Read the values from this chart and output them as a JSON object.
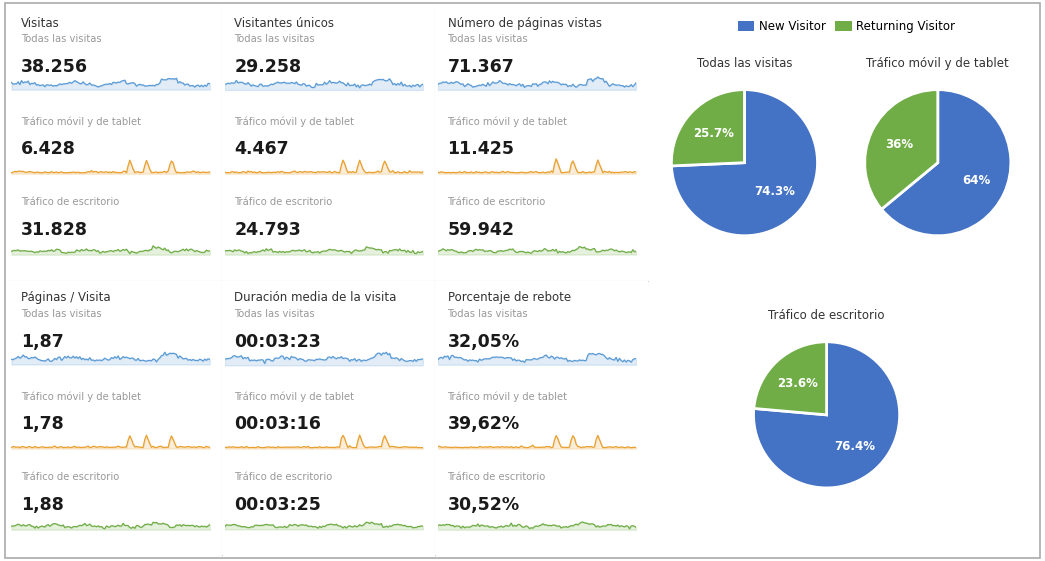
{
  "background_color": "#ffffff",
  "metrics": [
    {
      "title": "Visitas",
      "rows": [
        {
          "label": "Todas las visitas",
          "value": "38.256",
          "color": "#5b9bd5"
        },
        {
          "label": "Tráfico móvil y de tablet",
          "value": "6.428",
          "color": "#e8a030"
        },
        {
          "label": "Tráfico de escritorio",
          "value": "31.828",
          "color": "#70ad47"
        }
      ]
    },
    {
      "title": "Visitantes únicos",
      "rows": [
        {
          "label": "Todas las visitas",
          "value": "29.258",
          "color": "#5b9bd5"
        },
        {
          "label": "Tráfico móvil y de tablet",
          "value": "4.467",
          "color": "#e8a030"
        },
        {
          "label": "Tráfico de escritorio",
          "value": "24.793",
          "color": "#70ad47"
        }
      ]
    },
    {
      "title": "Número de páginas vistas",
      "rows": [
        {
          "label": "Todas las visitas",
          "value": "71.367",
          "color": "#5b9bd5"
        },
        {
          "label": "Tráfico móvil y de tablet",
          "value": "11.425",
          "color": "#e8a030"
        },
        {
          "label": "Tráfico de escritorio",
          "value": "59.942",
          "color": "#70ad47"
        }
      ]
    },
    {
      "title": "Páginas / Visita",
      "rows": [
        {
          "label": "Todas las visitas",
          "value": "1,87",
          "color": "#5b9bd5"
        },
        {
          "label": "Tráfico móvil y de tablet",
          "value": "1,78",
          "color": "#e8a030"
        },
        {
          "label": "Tráfico de escritorio",
          "value": "1,88",
          "color": "#70ad47"
        }
      ]
    },
    {
      "title": "Duración media de la visita",
      "rows": [
        {
          "label": "Todas las visitas",
          "value": "00:03:23",
          "color": "#5b9bd5"
        },
        {
          "label": "Tráfico móvil y de tablet",
          "value": "00:03:16",
          "color": "#e8a030"
        },
        {
          "label": "Tráfico de escritorio",
          "value": "00:03:25",
          "color": "#70ad47"
        }
      ]
    },
    {
      "title": "Porcentaje de rebote",
      "rows": [
        {
          "label": "Todas las visitas",
          "value": "32,05%",
          "color": "#5b9bd5"
        },
        {
          "label": "Tráfico móvil y de tablet",
          "value": "39,62%",
          "color": "#e8a030"
        },
        {
          "label": "Tráfico de escritorio",
          "value": "30,52%",
          "color": "#70ad47"
        }
      ]
    }
  ],
  "pies": [
    {
      "title": "Todas las visitas",
      "values": [
        74.3,
        25.7
      ],
      "labels": [
        "74.3%",
        "25.7%"
      ],
      "colors": [
        "#4472c4",
        "#70ad47"
      ]
    },
    {
      "title": "Tráfico móvil y de tablet",
      "values": [
        64.0,
        36.0
      ],
      "labels": [
        "64%",
        "36%"
      ],
      "colors": [
        "#4472c4",
        "#70ad47"
      ]
    },
    {
      "title": "Tráfico de escritorio",
      "values": [
        76.4,
        23.6
      ],
      "labels": [
        "76.4%",
        "23.6%"
      ],
      "colors": [
        "#4472c4",
        "#70ad47"
      ]
    }
  ],
  "legend_labels": [
    "New Visitor",
    "Returning Visitor"
  ],
  "legend_colors": [
    "#4472c4",
    "#70ad47"
  ],
  "title_color": "#333333",
  "label_color": "#999999",
  "value_color": "#1a1a1a",
  "spark_bg": "#ddeeff",
  "divider_color": "#cccccc",
  "border_color": "#aaaaaa"
}
